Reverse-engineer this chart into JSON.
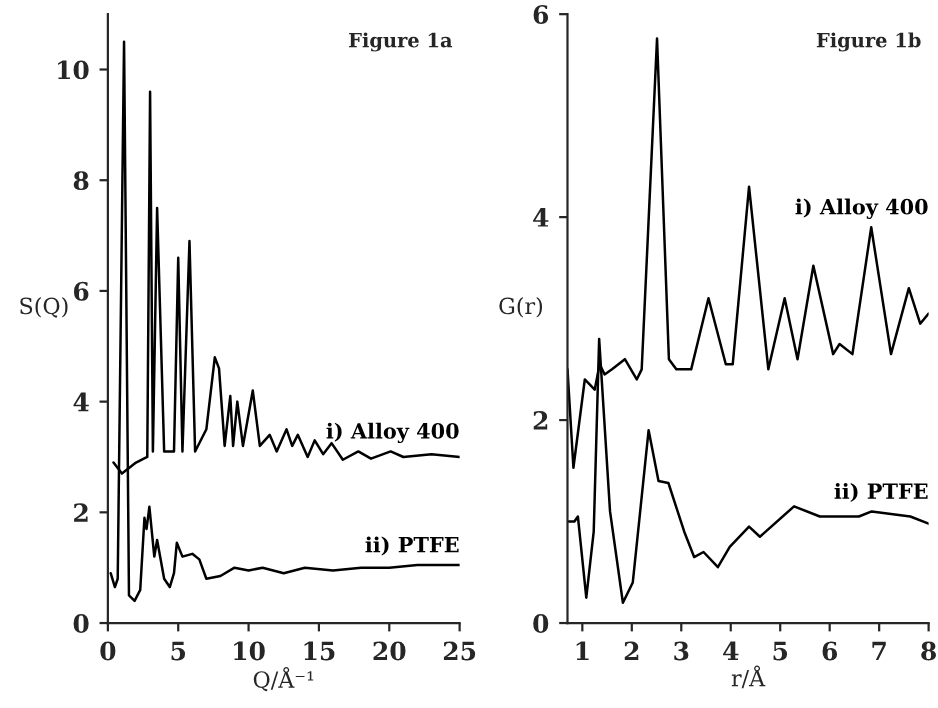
{
  "chart_data": [
    {
      "type": "line",
      "annotations": [
        "Figure 1a"
      ],
      "xlabel": "Q/Å⁻¹",
      "ylabel": "S(Q)",
      "xlim": [
        0,
        25
      ],
      "ylim": [
        0,
        11
      ],
      "xticks": [
        0,
        5,
        10,
        15,
        20,
        25
      ],
      "yticks": [
        0,
        2,
        4,
        6,
        8,
        10
      ],
      "grid": false,
      "legend": false,
      "series": [
        {
          "name": "i) Alloy 400",
          "color": "#000000",
          "x": [
            0.4,
            1.0,
            2.0,
            2.8,
            3.0,
            3.2,
            3.5,
            4.0,
            4.7,
            5.0,
            5.3,
            5.8,
            6.2,
            7.0,
            7.6,
            7.9,
            8.3,
            8.7,
            8.9,
            9.2,
            9.6,
            10.3,
            10.8,
            11.5,
            12.0,
            12.7,
            13.1,
            13.5,
            14.2,
            14.7,
            15.3,
            15.9,
            16.7,
            17.8,
            18.7,
            20.1,
            21.0,
            23.0,
            25.0
          ],
          "values": [
            2.9,
            2.7,
            2.9,
            3.0,
            9.6,
            3.1,
            7.5,
            3.1,
            3.1,
            6.6,
            3.1,
            6.9,
            3.1,
            3.5,
            4.8,
            4.6,
            3.2,
            4.1,
            3.2,
            4.0,
            3.2,
            4.2,
            3.2,
            3.4,
            3.1,
            3.5,
            3.2,
            3.4,
            3.0,
            3.3,
            3.05,
            3.25,
            2.95,
            3.1,
            2.97,
            3.1,
            3.0,
            3.05,
            3.0
          ]
        },
        {
          "name": "ii) PTFE",
          "color": "#000000",
          "x": [
            0.2,
            0.5,
            0.7,
            1.15,
            1.5,
            1.9,
            2.3,
            2.6,
            2.75,
            2.95,
            3.3,
            3.5,
            4.0,
            4.4,
            4.7,
            4.9,
            5.3,
            6.0,
            6.5,
            7.0,
            8.0,
            9.0,
            10.0,
            11.0,
            12.5,
            14.0,
            16.0,
            18.0,
            20.0,
            22.0,
            25.0
          ],
          "values": [
            0.9,
            0.65,
            0.8,
            10.5,
            0.5,
            0.4,
            0.6,
            1.9,
            1.7,
            2.1,
            1.2,
            1.5,
            0.8,
            0.65,
            0.9,
            1.45,
            1.2,
            1.25,
            1.15,
            0.8,
            0.85,
            1.0,
            0.95,
            1.0,
            0.9,
            1.0,
            0.95,
            1.0,
            1.0,
            1.05,
            1.05
          ]
        }
      ]
    },
    {
      "type": "line",
      "annotations": [
        "Figure 1b"
      ],
      "xlabel": "r/Å",
      "ylabel": "G(r)",
      "xlim": [
        0.7,
        8
      ],
      "ylim": [
        0,
        6
      ],
      "xticks": [
        1,
        2,
        3,
        4,
        5,
        6,
        7,
        8
      ],
      "yticks": [
        0,
        2,
        4,
        6
      ],
      "grid": false,
      "legend": false,
      "series": [
        {
          "name": "i) Alloy 400",
          "color": "#000000",
          "x": [
            0.7,
            0.82,
            1.05,
            1.25,
            1.35,
            1.45,
            1.6,
            1.86,
            2.1,
            2.2,
            2.51,
            2.75,
            2.9,
            3.2,
            3.55,
            3.9,
            4.04,
            4.37,
            4.76,
            5.09,
            5.35,
            5.67,
            6.07,
            6.2,
            6.46,
            6.84,
            7.24,
            7.6,
            7.83,
            8.0
          ],
          "values": [
            2.5,
            1.53,
            2.4,
            2.3,
            2.55,
            2.45,
            2.5,
            2.6,
            2.4,
            2.5,
            5.76,
            2.6,
            2.5,
            2.5,
            3.2,
            2.55,
            2.55,
            4.3,
            2.5,
            3.2,
            2.6,
            3.52,
            2.65,
            2.75,
            2.65,
            3.9,
            2.65,
            3.3,
            2.95,
            3.05
          ]
        },
        {
          "name": "ii) PTFE",
          "color": "#000000",
          "x": [
            0.7,
            0.84,
            0.91,
            1.08,
            1.23,
            1.34,
            1.56,
            1.82,
            2.02,
            2.34,
            2.54,
            2.74,
            3.06,
            3.26,
            3.45,
            3.74,
            3.98,
            4.37,
            4.59,
            5.28,
            5.8,
            6.59,
            6.85,
            7.63,
            8.0
          ],
          "values": [
            1.0,
            1.0,
            1.05,
            0.25,
            0.9,
            2.8,
            1.1,
            0.2,
            0.4,
            1.9,
            1.4,
            1.38,
            0.9,
            0.65,
            0.7,
            0.55,
            0.75,
            0.95,
            0.85,
            1.15,
            1.05,
            1.05,
            1.1,
            1.05,
            0.98
          ]
        }
      ]
    }
  ]
}
